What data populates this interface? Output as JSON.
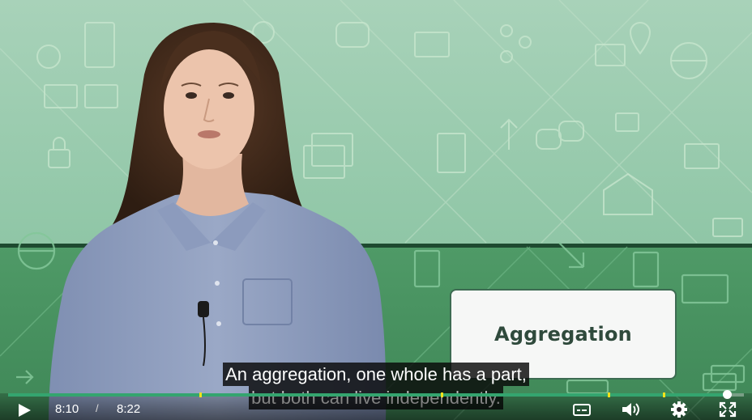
{
  "slide": {
    "card_title": "Aggregation"
  },
  "captions": {
    "line1": "An aggregation, one whole has a part,",
    "line2": "but both can live independently."
  },
  "player": {
    "current_time": "8:10",
    "separator": "/",
    "duration": "8:22",
    "progress_fraction": 0.977,
    "accent_color": "#34a56f",
    "chapter_marker_color": "#f3e21b",
    "icons": [
      "play-icon",
      "captions-icon",
      "volume-icon",
      "settings-icon",
      "fullscreen-icon"
    ]
  }
}
